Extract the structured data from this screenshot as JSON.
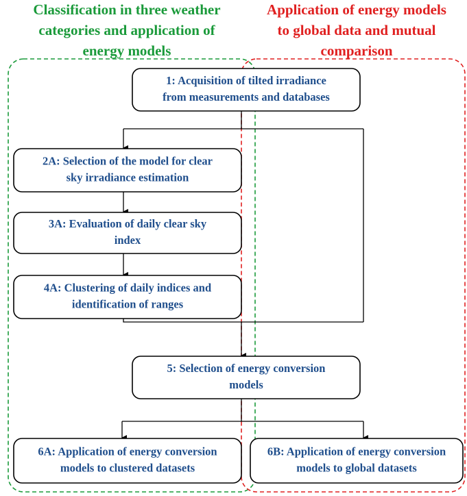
{
  "headers": [
    {
      "lines": [
        "Classification in three weather",
        "categories and application of",
        "energy models"
      ]
    },
    {
      "lines": [
        "Application of energy models",
        "to global data and mutual",
        "comparison"
      ]
    }
  ],
  "nodes": [
    {
      "lines": [
        "1: Acquisition of tilted irradiance",
        "from measurements and databases"
      ]
    },
    {
      "lines": [
        "2A: Selection of the model for clear",
        "sky irradiance estimation"
      ]
    },
    {
      "lines": [
        "3A: Evaluation of daily clear sky",
        "index"
      ]
    },
    {
      "lines": [
        "4A: Clustering of daily indices and",
        "identification of ranges"
      ]
    },
    {
      "lines": [
        "5: Selection of energy conversion",
        "models"
      ]
    },
    {
      "lines": [
        "6A: Application of energy conversion",
        "models to clustered datasets"
      ]
    },
    {
      "lines": [
        "6B: Application of energy conversion",
        "models to global datasets"
      ]
    }
  ]
}
